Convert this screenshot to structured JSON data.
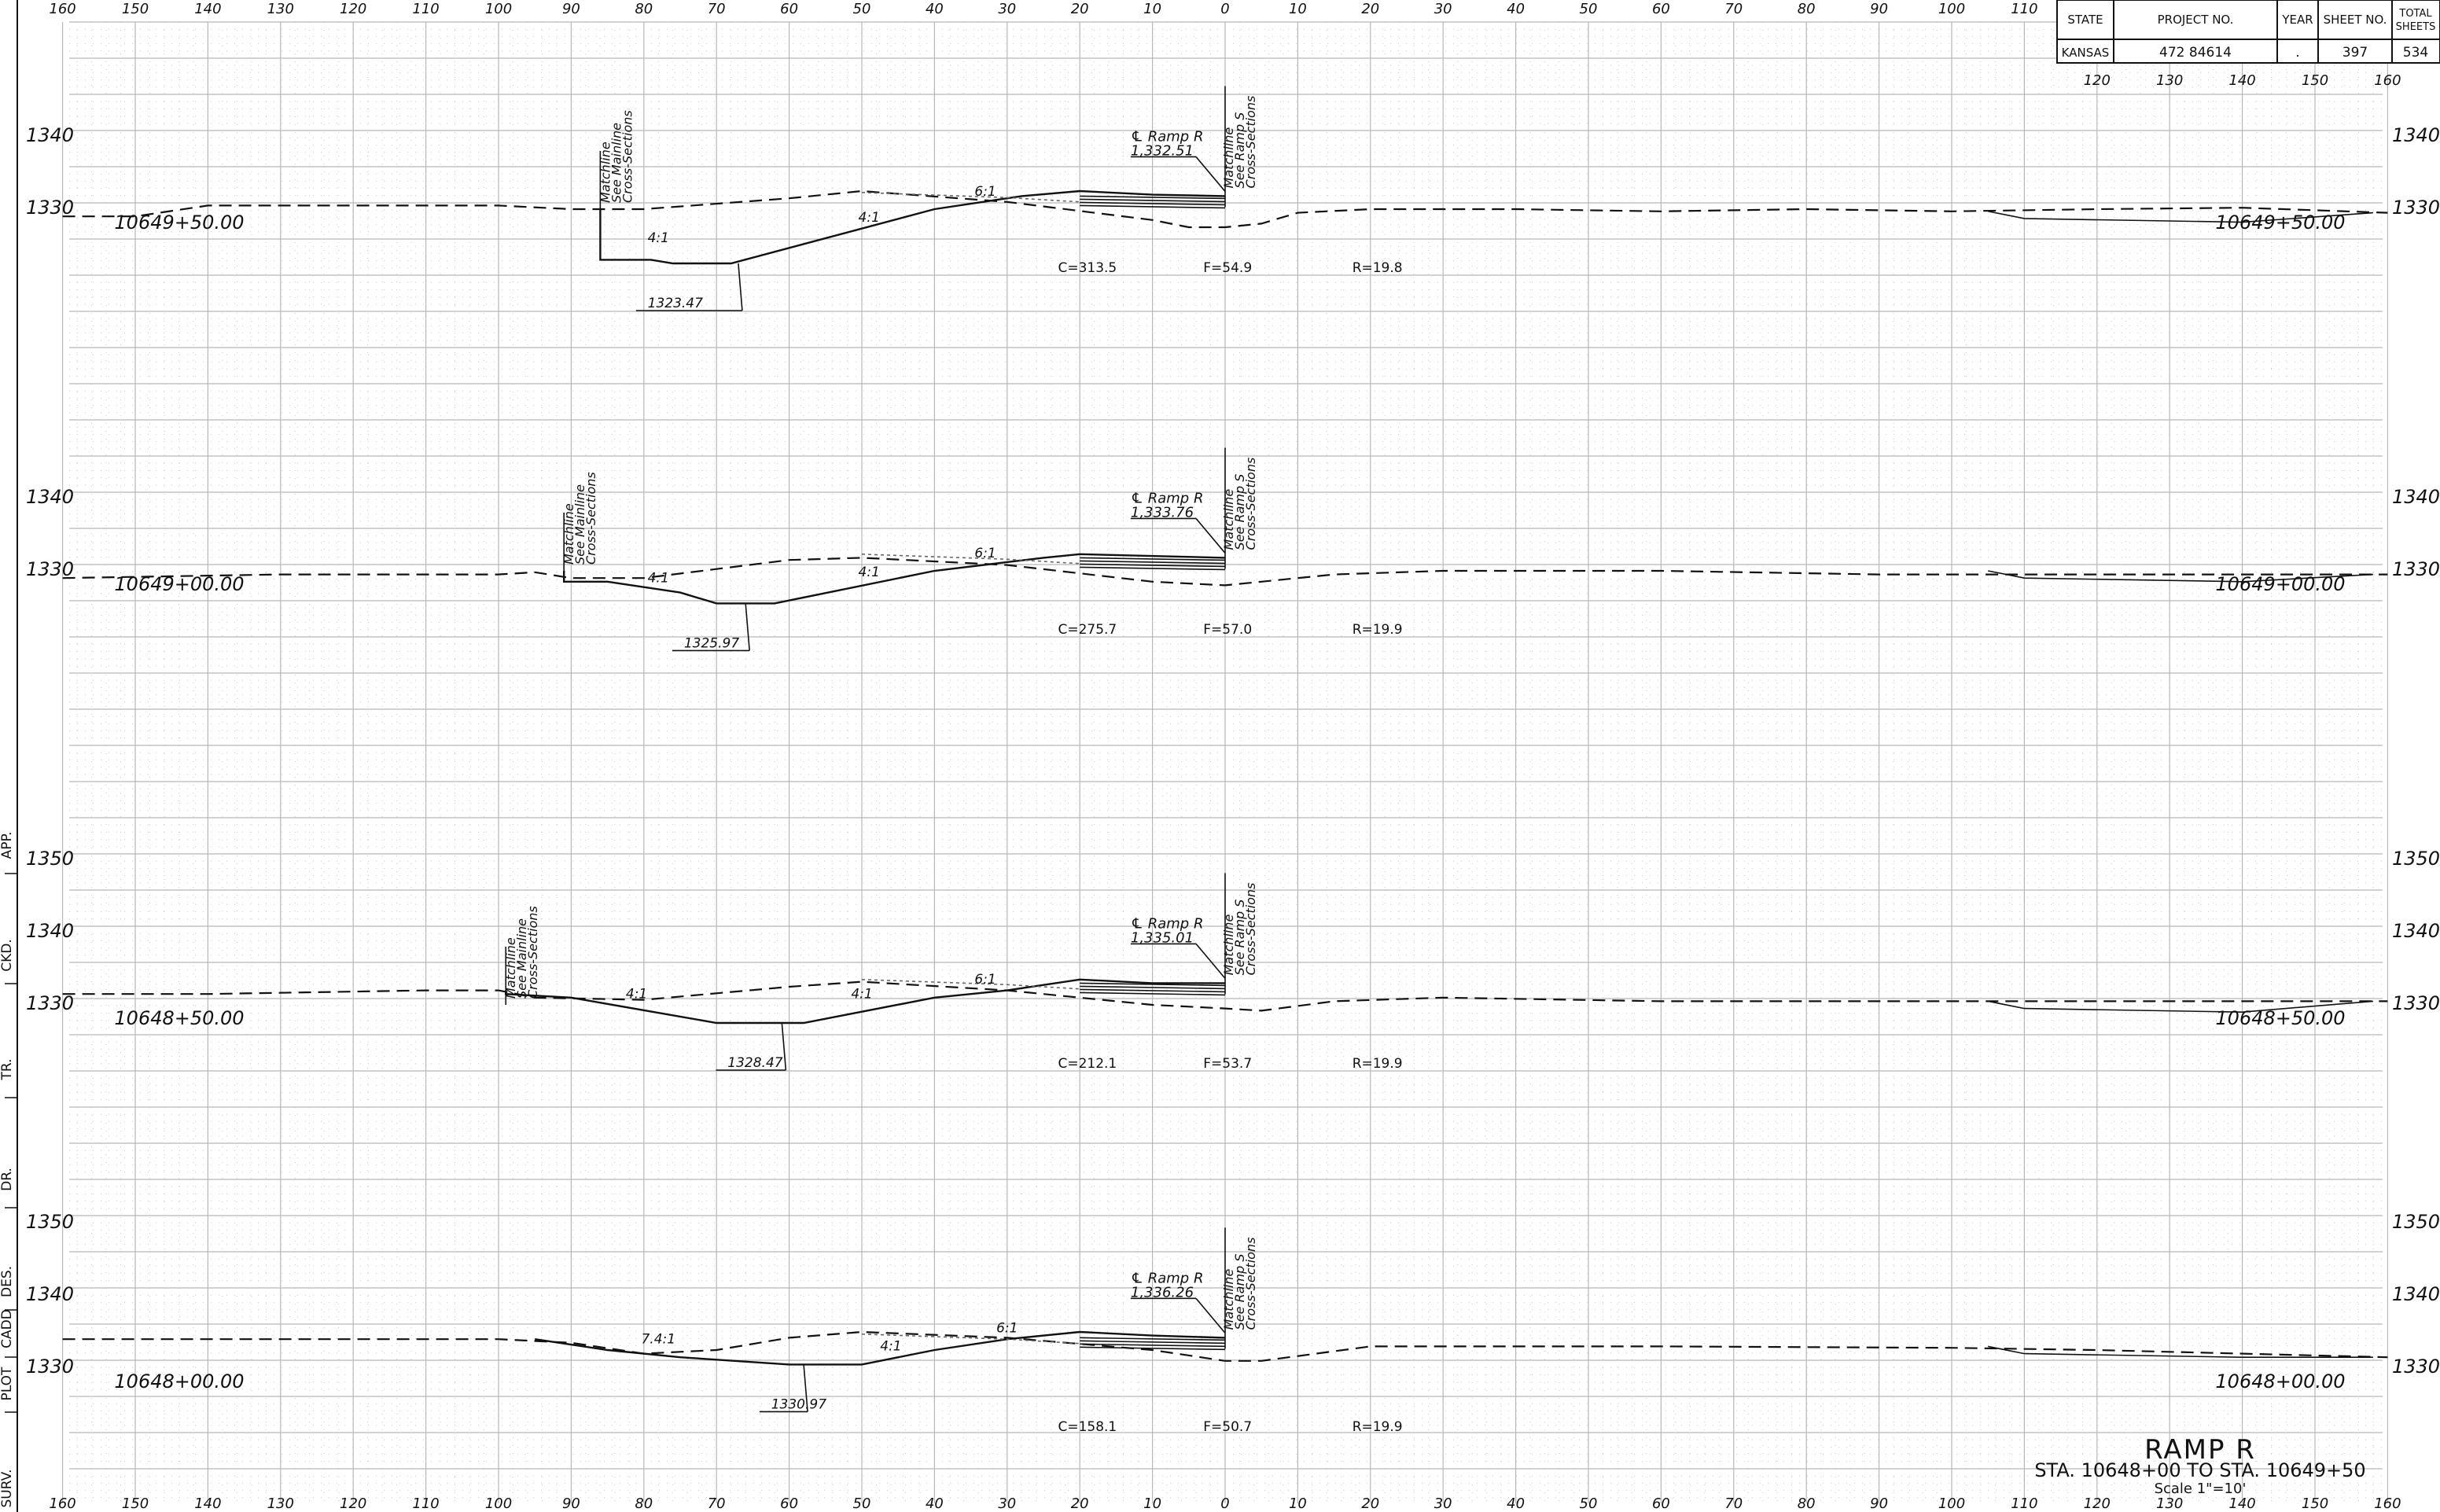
{
  "title_block": {
    "headers": [
      "STATE",
      "PROJECT NO.",
      "YEAR",
      "SHEET NO.",
      "TOTAL SHEETS"
    ],
    "values": [
      "KANSAS",
      "472 84614",
      ".",
      "397",
      "534"
    ]
  },
  "revision_strip": [
    "SURV.",
    "PLOT",
    "CADD",
    "DES.",
    "DR.",
    "TR.",
    "CKD.",
    "APP."
  ],
  "offset_labels": [
    "160",
    "150",
    "140",
    "130",
    "120",
    "110",
    "100",
    "90",
    "80",
    "70",
    "60",
    "50",
    "40",
    "30",
    "20",
    "10",
    "0",
    "10",
    "20",
    "30",
    "40",
    "50",
    "60",
    "70",
    "80",
    "90",
    "100",
    "110",
    "120",
    "130",
    "140",
    "150",
    "160"
  ],
  "title": {
    "name": "RAMP R",
    "range": "STA. 10648+00 TO STA. 10649+50",
    "scale": "Scale 1\"=10'"
  },
  "cross_sections": [
    {
      "station": "10649+50.00",
      "elevations": [
        "1340",
        "1330"
      ],
      "ramp_label": "℄ Ramp R",
      "ramp_elev": "1,332.51",
      "matchline_main": [
        "Matchline",
        "See Mainline",
        "Cross-Sections"
      ],
      "matchline_ramp": [
        "Matchline",
        "See Ramp S",
        "Cross-Sections"
      ],
      "ditch_elev": "1323.47",
      "slope_labels": [
        "4:1",
        "4:1",
        "6:1"
      ],
      "cut": "C=313.5",
      "fill": "F=54.9",
      "r": "R=19.8"
    },
    {
      "station": "10649+00.00",
      "elevations": [
        "1340",
        "1330"
      ],
      "ramp_label": "℄ Ramp R",
      "ramp_elev": "1,333.76",
      "matchline_main": [
        "Matchline",
        "See Mainline",
        "Cross-Sections"
      ],
      "matchline_ramp": [
        "Matchline",
        "See Ramp S",
        "Cross-Sections"
      ],
      "ditch_elev": "1325.97",
      "slope_labels": [
        "4:1",
        "4:1",
        "6:1"
      ],
      "cut": "C=275.7",
      "fill": "F=57.0",
      "r": "R=19.9"
    },
    {
      "station": "10648+50.00",
      "elevations": [
        "1350",
        "1340",
        "1330"
      ],
      "ramp_label": "℄ Ramp R",
      "ramp_elev": "1,335.01",
      "matchline_main": [
        "Matchline",
        "See Mainline",
        "Cross-Sections"
      ],
      "matchline_ramp": [
        "Matchline",
        "See Ramp S",
        "Cross-Sections"
      ],
      "ditch_elev": "1328.47",
      "slope_labels": [
        "4:1",
        "4:1",
        "6:1"
      ],
      "cut": "C=212.1",
      "fill": "F=53.7",
      "r": "R=19.9"
    },
    {
      "station": "10648+00.00",
      "elevations": [
        "1350",
        "1340",
        "1330"
      ],
      "ramp_label": "℄ Ramp R",
      "ramp_elev": "1,336.26",
      "matchline_main": null,
      "matchline_ramp": [
        "Matchline",
        "See Ramp S",
        "Cross-Sections"
      ],
      "ditch_elev": "1330.97",
      "slope_labels": [
        "7.4:1",
        "4:1",
        "6:1"
      ],
      "cut": "C=158.1",
      "fill": "F=50.7",
      "r": "R=19.9"
    }
  ]
}
